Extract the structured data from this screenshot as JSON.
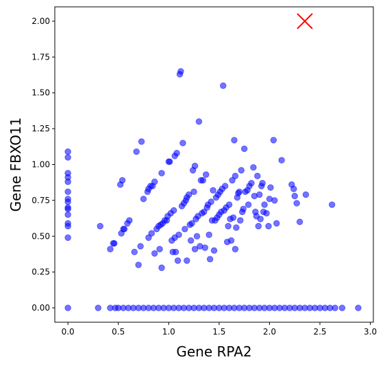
{
  "chart_data": {
    "type": "scatter",
    "title": "",
    "xlabel": "Gene RPA2",
    "ylabel": "Gene FBXO11",
    "xlim": [
      -0.13,
      3.03
    ],
    "ylim": [
      -0.1,
      2.1
    ],
    "xticks": [
      0.0,
      0.5,
      1.0,
      1.5,
      2.0,
      2.5,
      3.0
    ],
    "xtick_labels": [
      "0.0",
      "0.5",
      "1.0",
      "1.5",
      "2.0",
      "2.5",
      "3.0"
    ],
    "yticks": [
      0.0,
      0.25,
      0.5,
      0.75,
      1.0,
      1.25,
      1.5,
      1.75,
      2.0
    ],
    "ytick_labels": [
      "0.00",
      "0.25",
      "0.50",
      "0.75",
      "1.00",
      "1.25",
      "1.50",
      "1.75",
      "2.00"
    ],
    "grid": false,
    "colors": {
      "points": "#0000ff",
      "point_alpha": 0.55,
      "marker_x": "#ff0000"
    },
    "highlight_point": {
      "x": 2.35,
      "y": 2.0,
      "marker": "x"
    },
    "points": [
      [
        0.0,
        1.09
      ],
      [
        0.0,
        1.05
      ],
      [
        0.0,
        0.94
      ],
      [
        0.0,
        0.91
      ],
      [
        0.0,
        0.88
      ],
      [
        0.0,
        0.81
      ],
      [
        0.0,
        0.76
      ],
      [
        0.0,
        0.74
      ],
      [
        0.0,
        0.7
      ],
      [
        0.0,
        0.69
      ],
      [
        0.0,
        0.65
      ],
      [
        0.0,
        0.59
      ],
      [
        0.0,
        0.57
      ],
      [
        0.0,
        0.49
      ],
      [
        0.32,
        0.57
      ],
      [
        0.42,
        0.41
      ],
      [
        0.45,
        0.45
      ],
      [
        0.46,
        0.45
      ],
      [
        0.52,
        0.86
      ],
      [
        0.53,
        0.52
      ],
      [
        0.54,
        0.89
      ],
      [
        0.55,
        0.55
      ],
      [
        0.56,
        0.55
      ],
      [
        0.59,
        0.59
      ],
      [
        0.61,
        0.61
      ],
      [
        0.66,
        0.39
      ],
      [
        0.68,
        1.09
      ],
      [
        0.7,
        0.3
      ],
      [
        0.72,
        0.43
      ],
      [
        0.73,
        1.16
      ],
      [
        0.75,
        0.76
      ],
      [
        0.79,
        0.81
      ],
      [
        0.8,
        0.83
      ],
      [
        0.8,
        0.49
      ],
      [
        0.82,
        0.85
      ],
      [
        0.83,
        0.52
      ],
      [
        0.84,
        0.85
      ],
      [
        0.86,
        0.38
      ],
      [
        0.86,
        0.88
      ],
      [
        0.88,
        0.55
      ],
      [
        0.9,
        0.57
      ],
      [
        0.91,
        0.41
      ],
      [
        0.92,
        0.58
      ],
      [
        0.93,
        0.94
      ],
      [
        0.93,
        0.28
      ],
      [
        0.94,
        0.59
      ],
      [
        0.96,
        0.61
      ],
      [
        0.98,
        0.61
      ],
      [
        0.99,
        0.64
      ],
      [
        1.0,
        1.02
      ],
      [
        1.01,
        1.02
      ],
      [
        1.02,
        0.66
      ],
      [
        1.03,
        0.47
      ],
      [
        1.04,
        0.39
      ],
      [
        1.05,
        0.68
      ],
      [
        1.06,
        1.06
      ],
      [
        1.06,
        0.49
      ],
      [
        1.07,
        0.39
      ],
      [
        1.08,
        1.08
      ],
      [
        1.09,
        0.33
      ],
      [
        1.1,
        0.51
      ],
      [
        1.11,
        1.63
      ],
      [
        1.12,
        1.65
      ],
      [
        1.13,
        0.71
      ],
      [
        1.14,
        1.15
      ],
      [
        1.15,
        0.73
      ],
      [
        1.16,
        0.55
      ],
      [
        1.17,
        0.75
      ],
      [
        1.18,
        0.77
      ],
      [
        1.18,
        0.33
      ],
      [
        1.2,
        0.79
      ],
      [
        1.21,
        0.58
      ],
      [
        1.22,
        0.47
      ],
      [
        1.23,
        0.59
      ],
      [
        1.24,
        0.96
      ],
      [
        1.25,
        0.81
      ],
      [
        1.26,
        0.99
      ],
      [
        1.26,
        0.41
      ],
      [
        1.27,
        0.62
      ],
      [
        1.28,
        0.5
      ],
      [
        1.29,
        0.64
      ],
      [
        1.3,
        1.3
      ],
      [
        1.31,
        0.43
      ],
      [
        1.32,
        0.89
      ],
      [
        1.33,
        0.66
      ],
      [
        1.34,
        0.89
      ],
      [
        1.35,
        0.67
      ],
      [
        1.36,
        0.42
      ],
      [
        1.37,
        0.93
      ],
      [
        1.38,
        0.7
      ],
      [
        1.39,
        0.72
      ],
      [
        1.4,
        0.51
      ],
      [
        1.41,
        0.34
      ],
      [
        1.42,
        0.74
      ],
      [
        1.43,
        0.61
      ],
      [
        1.44,
        0.82
      ],
      [
        1.45,
        0.4
      ],
      [
        1.46,
        0.61
      ],
      [
        1.47,
        0.77
      ],
      [
        1.48,
        0.63
      ],
      [
        1.49,
        0.79
      ],
      [
        1.5,
        0.65
      ],
      [
        1.51,
        0.81
      ],
      [
        1.52,
        0.67
      ],
      [
        1.53,
        0.83
      ],
      [
        1.54,
        1.55
      ],
      [
        1.55,
        0.68
      ],
      [
        1.56,
        0.85
      ],
      [
        1.57,
        0.7
      ],
      [
        1.58,
        0.46
      ],
      [
        1.59,
        0.57
      ],
      [
        1.6,
        0.72
      ],
      [
        1.61,
        0.62
      ],
      [
        1.62,
        0.47
      ],
      [
        1.63,
        0.89
      ],
      [
        1.64,
        0.63
      ],
      [
        1.65,
        1.17
      ],
      [
        1.66,
        0.92
      ],
      [
        1.66,
        0.41
      ],
      [
        1.67,
        0.56
      ],
      [
        1.68,
        0.77
      ],
      [
        1.69,
        0.8
      ],
      [
        1.7,
        0.81
      ],
      [
        1.71,
        0.61
      ],
      [
        1.72,
        0.96
      ],
      [
        1.73,
        0.67
      ],
      [
        1.74,
        0.69
      ],
      [
        1.75,
        1.11
      ],
      [
        1.76,
        0.81
      ],
      [
        1.78,
        0.82
      ],
      [
        1.79,
        0.72
      ],
      [
        1.8,
        0.85
      ],
      [
        1.82,
        0.87
      ],
      [
        1.84,
        0.98
      ],
      [
        1.85,
        0.78
      ],
      [
        1.86,
        0.67
      ],
      [
        1.87,
        0.64
      ],
      [
        1.88,
        0.92
      ],
      [
        1.89,
        0.57
      ],
      [
        1.9,
        0.79
      ],
      [
        1.91,
        0.62
      ],
      [
        1.92,
        0.85
      ],
      [
        1.93,
        0.87
      ],
      [
        1.94,
        0.67
      ],
      [
        1.95,
        0.72
      ],
      [
        1.97,
        0.66
      ],
      [
        1.99,
        0.57
      ],
      [
        2.0,
        0.76
      ],
      [
        2.01,
        0.84
      ],
      [
        2.04,
        1.17
      ],
      [
        2.05,
        0.75
      ],
      [
        2.07,
        0.59
      ],
      [
        2.12,
        1.03
      ],
      [
        2.22,
        0.86
      ],
      [
        2.24,
        0.83
      ],
      [
        2.25,
        0.78
      ],
      [
        2.27,
        0.73
      ],
      [
        2.3,
        0.6
      ],
      [
        2.36,
        0.79
      ],
      [
        2.62,
        0.72
      ],
      [
        0.0,
        0.0
      ],
      [
        0.3,
        0.0
      ],
      [
        0.42,
        0.0
      ],
      [
        0.47,
        0.0
      ],
      [
        0.5,
        0.0
      ],
      [
        0.55,
        0.0
      ],
      [
        0.6,
        0.0
      ],
      [
        0.65,
        0.0
      ],
      [
        0.7,
        0.0
      ],
      [
        0.75,
        0.0
      ],
      [
        0.8,
        0.0
      ],
      [
        0.85,
        0.0
      ],
      [
        0.9,
        0.0
      ],
      [
        0.95,
        0.0
      ],
      [
        1.0,
        0.0
      ],
      [
        1.05,
        0.0
      ],
      [
        1.1,
        0.0
      ],
      [
        1.15,
        0.0
      ],
      [
        1.2,
        0.0
      ],
      [
        1.25,
        0.0
      ],
      [
        1.3,
        0.0
      ],
      [
        1.35,
        0.0
      ],
      [
        1.4,
        0.0
      ],
      [
        1.45,
        0.0
      ],
      [
        1.5,
        0.0
      ],
      [
        1.55,
        0.0
      ],
      [
        1.6,
        0.0
      ],
      [
        1.65,
        0.0
      ],
      [
        1.7,
        0.0
      ],
      [
        1.75,
        0.0
      ],
      [
        1.8,
        0.0
      ],
      [
        1.85,
        0.0
      ],
      [
        1.9,
        0.0
      ],
      [
        1.95,
        0.0
      ],
      [
        2.0,
        0.0
      ],
      [
        2.05,
        0.0
      ],
      [
        2.1,
        0.0
      ],
      [
        2.15,
        0.0
      ],
      [
        2.2,
        0.0
      ],
      [
        2.25,
        0.0
      ],
      [
        2.3,
        0.0
      ],
      [
        2.35,
        0.0
      ],
      [
        2.4,
        0.0
      ],
      [
        2.45,
        0.0
      ],
      [
        2.5,
        0.0
      ],
      [
        2.55,
        0.0
      ],
      [
        2.6,
        0.0
      ],
      [
        2.65,
        0.0
      ],
      [
        2.72,
        0.0
      ],
      [
        2.88,
        0.0
      ]
    ]
  }
}
